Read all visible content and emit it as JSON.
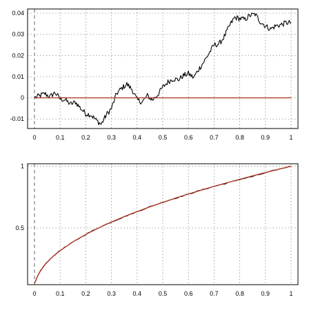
{
  "chart_data": [
    {
      "type": "line",
      "title": "",
      "xlabel": "",
      "ylabel": "",
      "xlim": [
        0,
        1
      ],
      "ylim": [
        -0.0145,
        0.042
      ],
      "xticks": [
        0,
        0.1,
        0.2,
        0.3,
        0.4,
        0.5,
        0.6,
        0.7,
        0.8,
        0.9,
        1
      ],
      "xtick_labels": [
        "0",
        "0.1",
        "0.2",
        "0.3",
        "0.4",
        "0.5",
        "0.6",
        "0.7",
        "0.8",
        "0.9",
        "1"
      ],
      "yticks": [
        -0.01,
        0,
        0.01,
        0.02,
        0.03,
        0.04
      ],
      "ytick_labels": [
        "-0.01",
        "0",
        "0.01",
        "0.02",
        "0.03",
        "0.04"
      ],
      "grid": true,
      "series": [
        {
          "name": "",
          "color": "#000000",
          "style": "noisy",
          "x": [
            0,
            0.02,
            0.04,
            0.06,
            0.08,
            0.1,
            0.12,
            0.14,
            0.16,
            0.18,
            0.2,
            0.22,
            0.24,
            0.26,
            0.28,
            0.3,
            0.32,
            0.34,
            0.36,
            0.38,
            0.4,
            0.42,
            0.44,
            0.46,
            0.48,
            0.5,
            0.52,
            0.54,
            0.56,
            0.58,
            0.6,
            0.62,
            0.64,
            0.66,
            0.68,
            0.7,
            0.72,
            0.74,
            0.76,
            0.78,
            0.8,
            0.82,
            0.84,
            0.86,
            0.88,
            0.9,
            0.92,
            0.94,
            0.96,
            0.98,
            1.0
          ],
          "y": [
            0,
            0.001,
            0.002,
            0.0005,
            0.0025,
            -0.0005,
            -0.001,
            -0.003,
            -0.002,
            -0.005,
            -0.0075,
            -0.008,
            -0.0105,
            -0.0125,
            -0.008,
            -0.005,
            0.002,
            0.0045,
            0.0065,
            0.004,
            -0.001,
            -0.002,
            0.001,
            -0.001,
            0.0015,
            0.005,
            0.0075,
            0.009,
            0.0085,
            0.0105,
            0.0115,
            0.0095,
            0.0135,
            0.017,
            0.021,
            0.025,
            0.0255,
            0.029,
            0.034,
            0.038,
            0.0375,
            0.037,
            0.039,
            0.0395,
            0.036,
            0.034,
            0.0325,
            0.034,
            0.0345,
            0.0355,
            0.0355
          ]
        },
        {
          "name": "",
          "color": "#b33a2a",
          "style": "smooth",
          "x": [
            0,
            1
          ],
          "y": [
            0,
            0
          ]
        }
      ]
    },
    {
      "type": "line",
      "title": "",
      "xlabel": "",
      "ylabel": "",
      "xlim": [
        0,
        1
      ],
      "ylim": [
        0.04,
        1.02
      ],
      "xticks": [
        0,
        0.1,
        0.2,
        0.3,
        0.4,
        0.5,
        0.6,
        0.7,
        0.8,
        0.9,
        1
      ],
      "xtick_labels": [
        "0",
        "0.1",
        "0.2",
        "0.3",
        "0.4",
        "0.5",
        "0.6",
        "0.7",
        "0.8",
        "0.9",
        "1"
      ],
      "yticks": [
        0.5,
        1
      ],
      "ytick_labels": [
        "0.5",
        "1"
      ],
      "grid": true,
      "series": [
        {
          "name": "",
          "color": "#000000",
          "style": "slightly-noisy",
          "x": [
            0,
            0.005,
            0.01,
            0.02,
            0.04,
            0.06,
            0.08,
            0.1,
            0.15,
            0.2,
            0.25,
            0.3,
            0.35,
            0.4,
            0.45,
            0.5,
            0.55,
            0.6,
            0.65,
            0.7,
            0.75,
            0.8,
            0.85,
            0.9,
            0.95,
            1.0
          ],
          "y": [
            0.05,
            0.075,
            0.1,
            0.142,
            0.2,
            0.245,
            0.283,
            0.318,
            0.385,
            0.448,
            0.502,
            0.548,
            0.591,
            0.631,
            0.672,
            0.708,
            0.741,
            0.774,
            0.807,
            0.836,
            0.863,
            0.893,
            0.917,
            0.946,
            0.975,
            1.0
          ]
        },
        {
          "name": "",
          "color": "#b33a2a",
          "style": "smooth",
          "x": [
            0,
            0.005,
            0.01,
            0.02,
            0.04,
            0.06,
            0.08,
            0.1,
            0.15,
            0.2,
            0.25,
            0.3,
            0.35,
            0.4,
            0.45,
            0.5,
            0.55,
            0.6,
            0.65,
            0.7,
            0.75,
            0.8,
            0.85,
            0.9,
            0.95,
            1.0
          ],
          "y": [
            0.05,
            0.071,
            0.1,
            0.141,
            0.2,
            0.245,
            0.283,
            0.316,
            0.387,
            0.447,
            0.5,
            0.548,
            0.592,
            0.632,
            0.671,
            0.707,
            0.742,
            0.775,
            0.806,
            0.837,
            0.866,
            0.894,
            0.922,
            0.949,
            0.975,
            1.0
          ]
        }
      ]
    }
  ]
}
